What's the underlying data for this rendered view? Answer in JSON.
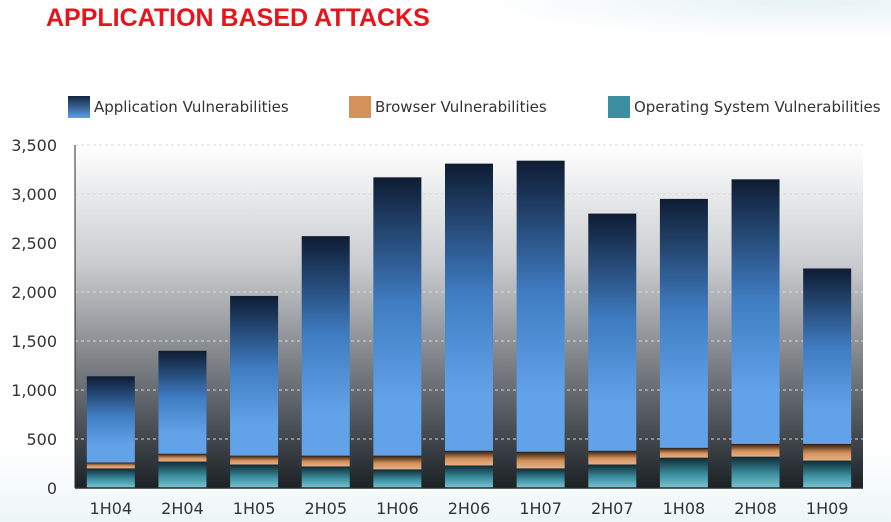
{
  "page": {
    "title": "APPLICATION BASED ATTACKS"
  },
  "chart_data": {
    "type": "bar",
    "stacked": true,
    "title": "APPLICATION BASED ATTACKS",
    "xlabel": "",
    "ylabel": "",
    "categories": [
      "1H04",
      "2H04",
      "1H05",
      "2H05",
      "1H06",
      "2H06",
      "1H07",
      "2H07",
      "1H08",
      "2H08",
      "1H09"
    ],
    "ylim": [
      0,
      3500
    ],
    "yticks": [
      0,
      500,
      1000,
      1500,
      2000,
      2500,
      3000,
      3500
    ],
    "ytick_labels": [
      "0",
      "500",
      "1,000",
      "1,500",
      "2,000",
      "2,500",
      "3,000",
      "3,500"
    ],
    "grid": true,
    "legend_position": "top",
    "series": [
      {
        "name": "Operating System Vulnerabilities",
        "color": "#3a8fa0",
        "values": [
          200,
          270,
          240,
          220,
          190,
          230,
          200,
          240,
          310,
          320,
          280
        ]
      },
      {
        "name": "Browser Vulnerabilities",
        "color": "#d4915a",
        "values": [
          60,
          80,
          90,
          110,
          140,
          150,
          170,
          140,
          100,
          130,
          170
        ]
      },
      {
        "name": "Application Vulnerabilities",
        "color": "#4f8fd6",
        "values": [
          880,
          1050,
          1630,
          2240,
          2840,
          2930,
          2970,
          2420,
          2540,
          2700,
          1790
        ]
      }
    ],
    "legend_order": [
      "Application Vulnerabilities",
      "Browser Vulnerabilities",
      "Operating System Vulnerabilities"
    ]
  }
}
